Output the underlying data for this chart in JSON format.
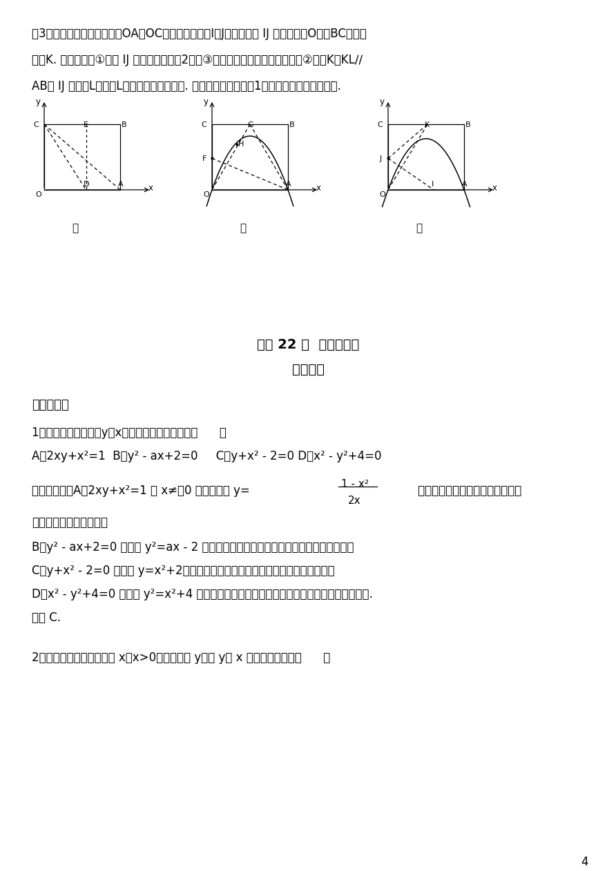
{
  "bg_color": "#ffffff",
  "page_number": "4",
  "top_text_lines": [
    "（3）如图丙：一般地，在以OA、OC上选取适当的点I、J，使纸片沿 IJ 翻折后，点O落在BC边上，",
    "记为K. 请你猜想：①折痕 IJ 所在直线与第（2）题③中的抛物线会有几个公共点；②经过K作KL∕∕",
    "AB与 IJ 相交于L，则点L是否必定在抛物线上. 将以上两项猜想在（1）的情形下分别进行验证."
  ],
  "section_header_1": "《第 22 章  二次函数》",
  "section_header_2": "参考答案",
  "section_1_title": "一、选择题",
  "q1_text": "1．在下列关系式中，y是x的二次函数的关系式是（      ）",
  "q1_options": "A．2xy+x²=1  B．y² - ax+2=0     C．y+x² - 2=0 D．x² - y²+4=0",
  "answer_part1": "【解答】解：A、2xy+x²=1 当 x≠　0 时，可化为 y=",
  "fraction_numerator": "1 - x²",
  "fraction_denominator": "2x",
  "answer_part2": "         的形式，不符合一元二次方程的一",
  "answer_line2": "般形式，故本选项错误；",
  "answer_lines_b": "B、y² - ax+2=0 可化为 y²=ax - 2 不符合一元二次方程的一般形式，故本选项错误；",
  "answer_lines_c": "C、y+x² - 2=0 可化为 y=x²+2，符合一元二次方程的一般形式，故本选项正确；",
  "answer_lines_d": "D、x² - y²+4=0 可化为 y²=x²+4 的形式，不符合一元二次方程的一般形式，故本选项错误.",
  "answer_conclusion": "故选 C.",
  "q2_text": "2．设等边三角形的边长为 x（x>0），面积为 y，则 y与 x 的函数关系式是（      ）"
}
